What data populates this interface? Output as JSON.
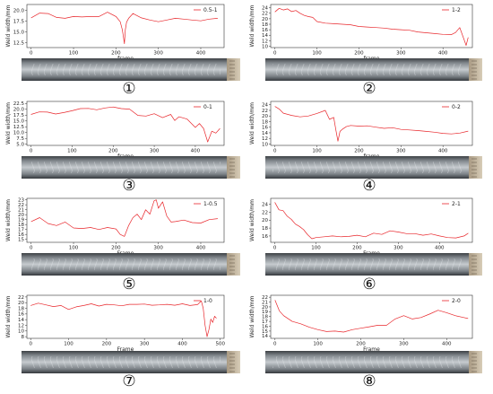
{
  "colors": {
    "line": "#e8262b",
    "axis": "#333333"
  },
  "chart_data": [
    {
      "type": "line",
      "caption": "①",
      "ylabel": "Weld width/mm",
      "xlabel": "frame",
      "legend": "0.5-1",
      "xticks": [
        0,
        100,
        200,
        300,
        400
      ],
      "yticks": [
        "12.5",
        "15.0",
        "17.5",
        "20.0"
      ],
      "xlim": [
        -10,
        455
      ],
      "ylim": [
        11.4,
        21.4
      ],
      "series": [
        {
          "name": "0.5-1",
          "x": [
            0,
            20,
            40,
            60,
            80,
            100,
            120,
            140,
            160,
            180,
            200,
            210,
            215,
            218,
            220,
            222,
            225,
            230,
            240,
            260,
            280,
            300,
            320,
            340,
            360,
            380,
            400,
            420,
            440
          ],
          "y": [
            18.3,
            19.4,
            19.3,
            18.4,
            18.2,
            18.6,
            18.5,
            18.6,
            18.6,
            19.6,
            18.6,
            17.4,
            15.5,
            13.6,
            12.3,
            15.5,
            17.3,
            18.2,
            19.3,
            18.3,
            17.8,
            17.4,
            17.8,
            18.2,
            18.0,
            17.8,
            17.6,
            18.0,
            18.2
          ]
        }
      ]
    },
    {
      "type": "line",
      "caption": "②",
      "ylabel": "Weld width/mm",
      "xlabel": "frame",
      "legend": "1-2",
      "xticks": [
        0,
        100,
        200,
        300,
        400
      ],
      "yticks": [
        "10",
        "12",
        "14",
        "16",
        "18",
        "20",
        "22",
        "24"
      ],
      "xlim": [
        -10,
        470
      ],
      "ylim": [
        9.5,
        25.2
      ],
      "series": [
        {
          "name": "1-2",
          "x": [
            0,
            10,
            20,
            30,
            40,
            50,
            60,
            70,
            80,
            90,
            100,
            120,
            140,
            160,
            180,
            200,
            220,
            240,
            260,
            280,
            300,
            320,
            340,
            360,
            380,
            400,
            420,
            430,
            440,
            450,
            455,
            460
          ],
          "y": [
            22.5,
            23.8,
            23.2,
            23.6,
            22.6,
            23.0,
            22.0,
            21.2,
            20.8,
            20.5,
            19.0,
            18.4,
            18.2,
            18.0,
            17.8,
            17.2,
            17.0,
            16.8,
            16.6,
            16.2,
            16.0,
            15.8,
            15.2,
            14.9,
            14.6,
            14.3,
            14.2,
            15.0,
            16.8,
            12.5,
            10.3,
            13.2
          ]
        }
      ]
    },
    {
      "type": "line",
      "caption": "③",
      "ylabel": "Weld width/mm",
      "xlabel": "frame",
      "legend": "0-1",
      "xticks": [
        0,
        100,
        200,
        300,
        400
      ],
      "yticks": [
        "5.0",
        "7.5",
        "10.0",
        "12.5",
        "15.0",
        "17.5",
        "20.0",
        "22.5"
      ],
      "xlim": [
        -10,
        470
      ],
      "ylim": [
        4.5,
        23.4
      ],
      "series": [
        {
          "name": "0-1",
          "x": [
            0,
            20,
            40,
            60,
            80,
            100,
            120,
            140,
            160,
            180,
            200,
            220,
            240,
            260,
            280,
            300,
            320,
            340,
            350,
            360,
            380,
            400,
            410,
            420,
            430,
            440,
            450,
            460
          ],
          "y": [
            17.8,
            18.9,
            18.8,
            18.0,
            18.6,
            19.4,
            20.3,
            20.4,
            19.8,
            20.6,
            21.0,
            20.3,
            20.1,
            17.4,
            17.1,
            18.1,
            16.4,
            17.8,
            15.2,
            16.8,
            15.8,
            12.2,
            13.9,
            11.8,
            6.0,
            10.6,
            9.8,
            11.8
          ]
        }
      ]
    },
    {
      "type": "line",
      "caption": "④",
      "ylabel": "Weld width/mm",
      "xlabel": "frame",
      "legend": "0-2",
      "xticks": [
        0,
        100,
        200,
        300,
        400
      ],
      "yticks": [
        "10",
        "12",
        "14",
        "16",
        "18",
        "20",
        "22",
        "24"
      ],
      "xlim": [
        -10,
        470
      ],
      "ylim": [
        9.5,
        25.2
      ],
      "series": [
        {
          "name": "0-2",
          "x": [
            0,
            10,
            20,
            40,
            60,
            80,
            100,
            120,
            130,
            140,
            145,
            150,
            155,
            160,
            170,
            180,
            200,
            220,
            240,
            260,
            280,
            300,
            320,
            340,
            360,
            380,
            400,
            420,
            440,
            460
          ],
          "y": [
            23.4,
            22.5,
            21.0,
            20.2,
            19.7,
            20.0,
            20.9,
            22.0,
            18.8,
            19.5,
            15.0,
            11.0,
            14.5,
            15.2,
            16.2,
            16.6,
            16.4,
            16.5,
            16.0,
            15.6,
            15.8,
            15.2,
            15.0,
            14.8,
            14.5,
            14.2,
            13.8,
            13.6,
            13.9,
            14.6
          ]
        }
      ]
    },
    {
      "type": "line",
      "caption": "⑤",
      "ylabel": "Weld width/mm",
      "xlabel": "Frame",
      "legend": "1-0.5",
      "xticks": [
        0,
        100,
        200,
        300,
        400
      ],
      "yticks": [
        "15",
        "16",
        "17",
        "18",
        "19",
        "20",
        "21",
        "22",
        "23"
      ],
      "xlim": [
        -10,
        455
      ],
      "ylim": [
        14.4,
        23.3
      ],
      "series": [
        {
          "name": "1-0.5",
          "x": [
            0,
            20,
            40,
            60,
            80,
            100,
            120,
            140,
            160,
            180,
            200,
            210,
            220,
            230,
            240,
            250,
            260,
            270,
            280,
            290,
            295,
            300,
            310,
            320,
            330,
            340,
            360,
            380,
            400,
            420,
            440
          ],
          "y": [
            18.6,
            19.4,
            18.2,
            17.8,
            18.5,
            17.3,
            17.2,
            17.4,
            17.0,
            17.4,
            17.1,
            16.0,
            15.6,
            17.8,
            19.4,
            20.1,
            19.0,
            21.0,
            20.1,
            22.8,
            23.0,
            21.3,
            22.6,
            19.7,
            18.5,
            18.6,
            18.9,
            18.4,
            18.3,
            19.0,
            19.2
          ]
        }
      ]
    },
    {
      "type": "line",
      "caption": "⑥",
      "ylabel": "Weld width/mm",
      "xlabel": "Frame",
      "legend": "2-1",
      "xticks": [
        0,
        100,
        200,
        300,
        400
      ],
      "yticks": [
        "16",
        "18",
        "20",
        "22",
        "24"
      ],
      "xlim": [
        -10,
        480
      ],
      "ylim": [
        14.4,
        25.5
      ],
      "series": [
        {
          "name": "2-1",
          "x": [
            0,
            10,
            20,
            30,
            40,
            50,
            60,
            70,
            80,
            90,
            100,
            120,
            140,
            160,
            180,
            200,
            220,
            240,
            260,
            280,
            300,
            320,
            340,
            360,
            380,
            400,
            420,
            440,
            460,
            470
          ],
          "y": [
            24.5,
            22.6,
            22.4,
            21.0,
            20.2,
            19.0,
            18.4,
            17.6,
            16.3,
            15.3,
            15.6,
            15.8,
            16.0,
            15.8,
            15.9,
            16.2,
            15.8,
            16.7,
            16.4,
            17.3,
            17.0,
            16.6,
            16.6,
            16.2,
            16.5,
            16.0,
            15.6,
            15.5,
            16.0,
            16.7
          ]
        }
      ]
    },
    {
      "type": "line",
      "caption": "⑦",
      "ylabel": "Weld width/mm",
      "xlabel": "Frame",
      "legend": "1-0",
      "xticks": [
        0,
        100,
        200,
        300,
        400,
        500
      ],
      "yticks": [
        "8",
        "10",
        "12",
        "14",
        "16",
        "18",
        "20",
        "22"
      ],
      "xlim": [
        -10,
        510
      ],
      "ylim": [
        7.4,
        22.6
      ],
      "series": [
        {
          "name": "1-0",
          "x": [
            0,
            20,
            40,
            60,
            80,
            100,
            120,
            140,
            160,
            180,
            200,
            220,
            240,
            260,
            280,
            300,
            320,
            340,
            360,
            380,
            400,
            420,
            440,
            450,
            455,
            460,
            465,
            470,
            475,
            480,
            485,
            490
          ],
          "y": [
            19.0,
            19.8,
            19.2,
            18.6,
            19.0,
            17.6,
            18.5,
            19.0,
            19.6,
            18.8,
            19.4,
            19.2,
            18.9,
            19.4,
            19.4,
            19.5,
            19.1,
            19.2,
            19.4,
            19.1,
            19.6,
            19.0,
            19.3,
            20.6,
            18.0,
            12.0,
            8.0,
            10.5,
            14.2,
            13.0,
            15.2,
            14.5
          ]
        }
      ]
    },
    {
      "type": "line",
      "caption": "⑧",
      "ylabel": "Weld width/mm",
      "xlabel": "Frame",
      "legend": "2-0",
      "xticks": [
        0,
        100,
        200,
        300,
        400
      ],
      "yticks": [
        "14",
        "15",
        "16",
        "17",
        "18",
        "19",
        "20",
        "21",
        "22"
      ],
      "xlim": [
        -10,
        460
      ],
      "ylim": [
        13.5,
        22.4
      ],
      "series": [
        {
          "name": "2-0",
          "x": [
            0,
            10,
            20,
            40,
            60,
            80,
            100,
            120,
            140,
            160,
            180,
            200,
            220,
            240,
            260,
            280,
            300,
            320,
            340,
            360,
            380,
            400,
            420,
            440,
            450
          ],
          "y": [
            21.4,
            19.2,
            18.2,
            17.0,
            16.5,
            15.8,
            15.3,
            14.9,
            15.0,
            14.8,
            15.3,
            15.6,
            15.9,
            16.2,
            16.2,
            17.5,
            18.2,
            17.5,
            17.8,
            18.5,
            19.3,
            18.8,
            18.2,
            17.8,
            17.6
          ]
        }
      ]
    }
  ]
}
